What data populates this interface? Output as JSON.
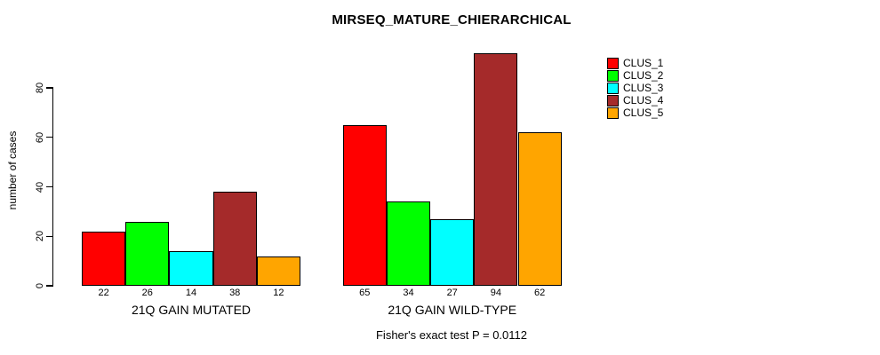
{
  "figure": {
    "title": "MIRSEQ_MATURE_CHIERARCHICAL",
    "caption": "Fisher's exact test P = 0.0112",
    "ylabel": "number of cases"
  },
  "chart_data": {
    "type": "bar",
    "title": "MIRSEQ_MATURE_CHIERARCHICAL",
    "xlabel": "",
    "ylabel": "number of cases",
    "yticks": [
      0,
      20,
      40,
      60,
      80
    ],
    "ylim": [
      0,
      96
    ],
    "grid": false,
    "legend_position": "top-right",
    "bar_value_labels_shown": true,
    "caption": "Fisher's exact test P = 0.0112",
    "categories": [
      "21Q GAIN MUTATED",
      "21Q GAIN WILD-TYPE"
    ],
    "series": [
      {
        "name": "CLUS_1",
        "color": "#FF0000",
        "values": [
          22,
          65
        ]
      },
      {
        "name": "CLUS_2",
        "color": "#00FF00",
        "values": [
          26,
          34
        ]
      },
      {
        "name": "CLUS_3",
        "color": "#00FFFF",
        "values": [
          14,
          27
        ]
      },
      {
        "name": "CLUS_4",
        "color": "#A52A2A",
        "values": [
          38,
          94
        ]
      },
      {
        "name": "CLUS_5",
        "color": "#FFA500",
        "values": [
          12,
          62
        ]
      }
    ]
  }
}
